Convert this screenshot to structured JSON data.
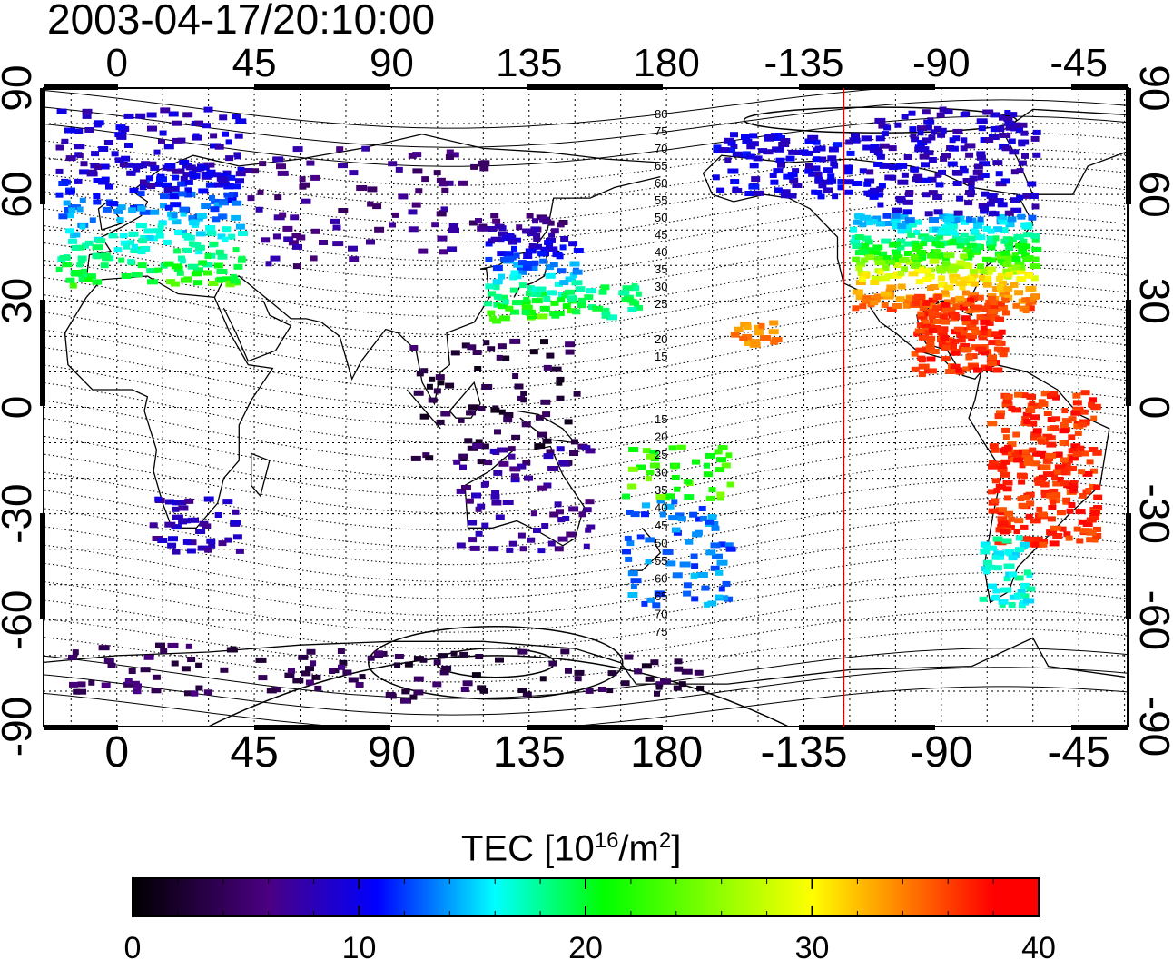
{
  "title": "2003-04-17/20:10:00",
  "map": {
    "lon_ticks": [
      "0",
      "45",
      "90",
      "135",
      "180",
      "-135",
      "-90",
      "-45"
    ],
    "lat_ticks": [
      "90",
      "60",
      "30",
      "0",
      "-30",
      "-60",
      "-90"
    ],
    "contour_labels_north": [
      "80",
      "75",
      "70",
      "65",
      "60",
      "55",
      "50",
      "45",
      "40",
      "35",
      "30",
      "25",
      "20",
      "15"
    ],
    "contour_labels_south": [
      "15",
      "20",
      "25",
      "30",
      "35",
      "40",
      "45",
      "50",
      "55",
      "60",
      "65",
      "70",
      "75"
    ],
    "marker_line_lon": -122,
    "colors": {
      "marker_line": "#e00000",
      "coast": "#000000"
    }
  },
  "colorbar": {
    "title_main": "TEC  [10",
    "title_sup1": "16",
    "title_mid": "/m",
    "title_sup2": "2",
    "title_end": "]",
    "ticks": [
      "0",
      "10",
      "20",
      "30",
      "40"
    ],
    "range": [
      0,
      40
    ],
    "colormap": [
      "#000000",
      "#4b0082",
      "#0000ff",
      "#00ffff",
      "#00ff00",
      "#ffff00",
      "#ff8000",
      "#ff0000"
    ]
  }
}
